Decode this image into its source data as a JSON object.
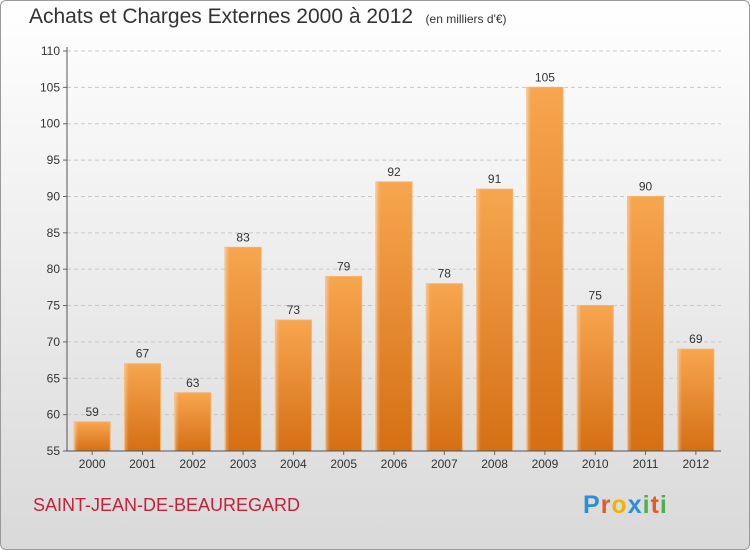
{
  "header": {
    "title": "Achats et Charges Externes 2000 à 2012",
    "unit": "(en milliers d'€)"
  },
  "footer": {
    "commune": "SAINT-JEAN-DE-BEAUREGARD",
    "brand": "Proxiti",
    "brand_letters": [
      "P",
      "r",
      "o",
      "x",
      "i",
      "t",
      "i"
    ],
    "brand_colors": [
      "#2a8fd6",
      "#e35b2c",
      "#f0b400",
      "#2a8fd6",
      "#4caf50",
      "#e35b2c",
      "#4caf50"
    ]
  },
  "chart_data": {
    "type": "bar",
    "title": "Achats et Charges Externes 2000 à 2012",
    "subtitle": "(en milliers d'€)",
    "xlabel": "",
    "ylabel": "",
    "categories": [
      "2000",
      "2001",
      "2002",
      "2003",
      "2004",
      "2005",
      "2006",
      "2007",
      "2008",
      "2009",
      "2010",
      "2011",
      "2012"
    ],
    "values": [
      59,
      67,
      63,
      83,
      73,
      79,
      92,
      78,
      91,
      105,
      75,
      90,
      69
    ],
    "ylim": [
      55,
      110
    ],
    "yticks": [
      55,
      60,
      65,
      70,
      75,
      80,
      85,
      90,
      95,
      100,
      105,
      110
    ],
    "grid": true,
    "bar_color": "#f0922e"
  }
}
